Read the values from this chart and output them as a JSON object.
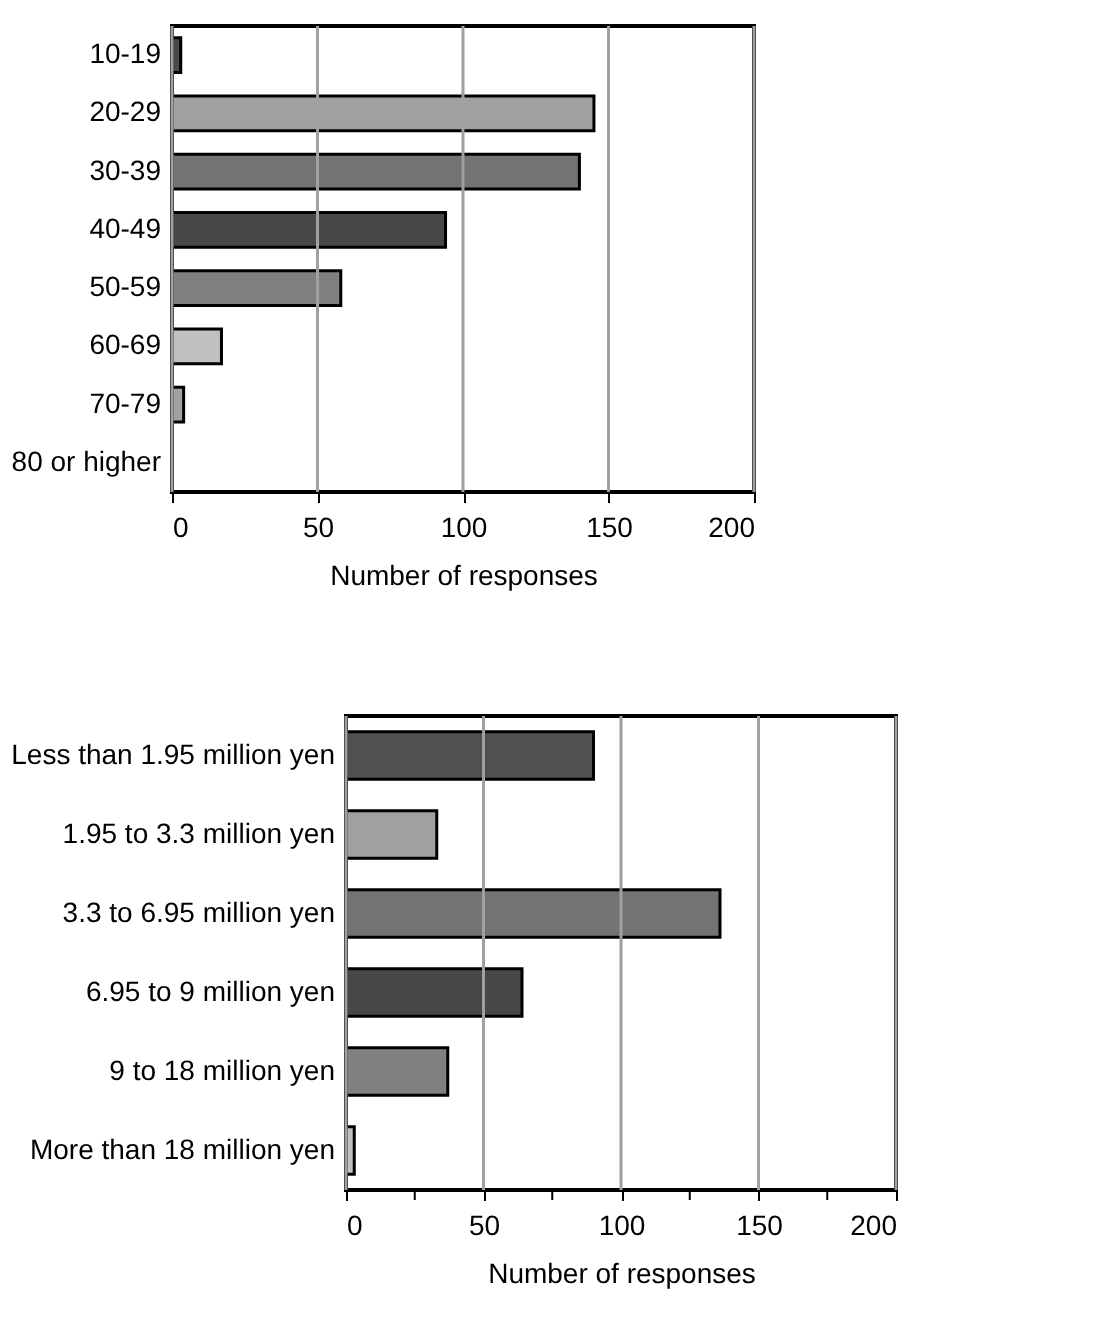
{
  "chart_data": [
    {
      "type": "bar",
      "orientation": "horizontal",
      "xlabel": "Number of responses",
      "categories": [
        "10-19",
        "20-29",
        "30-39",
        "40-49",
        "50-59",
        "60-69",
        "70-79",
        "80 or higher"
      ],
      "values": [
        3,
        145,
        140,
        94,
        58,
        17,
        4,
        0
      ],
      "colors": [
        "#4a4a4a",
        "#a0a0a0",
        "#737373",
        "#474747",
        "#808080",
        "#c0c0c0",
        "#a0a0a0",
        "#808080"
      ],
      "xlim": [
        0,
        200
      ],
      "xticks": [
        0,
        50,
        100,
        150,
        200
      ],
      "grid": "x"
    },
    {
      "type": "bar",
      "orientation": "horizontal",
      "xlabel": "Number of responses",
      "categories": [
        "Less than 1.95 million yen",
        "1.95 to 3.3 million yen",
        "3.3 to 6.95 million yen",
        "6.95 to 9 million yen",
        "9 to 18 million yen",
        "More than 18 million yen"
      ],
      "values": [
        90,
        33,
        136,
        64,
        37,
        3
      ],
      "colors": [
        "#505050",
        "#a0a0a0",
        "#737373",
        "#474747",
        "#808080",
        "#c0c0c0"
      ],
      "xlim": [
        0,
        200
      ],
      "xticks": [
        0,
        {
          "value": 25,
          "label": null
        },
        50,
        {
          "value": 75,
          "label": null
        },
        100,
        {
          "value": 125,
          "label": null
        },
        150,
        {
          "value": 175,
          "label": null
        },
        200
      ],
      "grid": "x"
    }
  ]
}
